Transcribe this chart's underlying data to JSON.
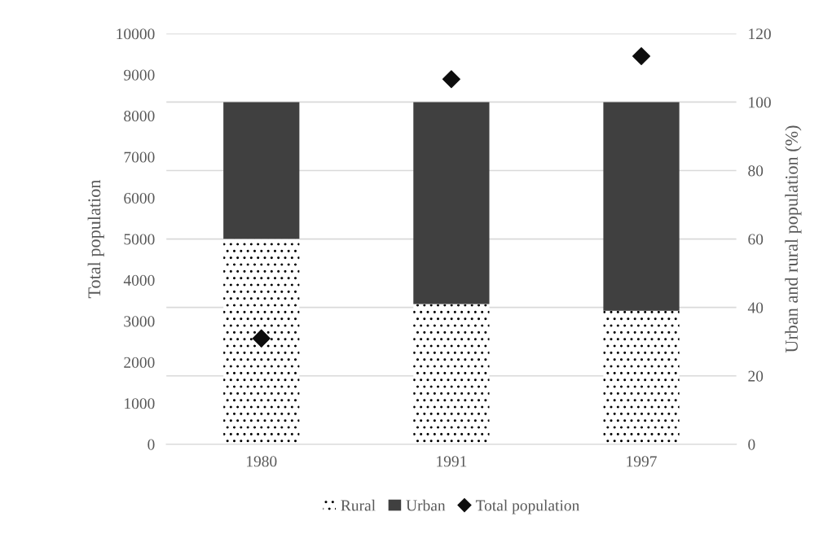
{
  "chart_data": {
    "type": "bar",
    "stacked": true,
    "categories": [
      "1980",
      "1991",
      "1997"
    ],
    "ylabel": "Total population",
    "y2label": "Urban and rural population (%)",
    "ylim": [
      0,
      10000
    ],
    "yticks": [
      0,
      1000,
      2000,
      3000,
      4000,
      5000,
      6000,
      7000,
      8000,
      9000,
      10000
    ],
    "y2lim": [
      0,
      120
    ],
    "y2ticks": [
      0,
      20,
      40,
      60,
      80,
      100,
      120
    ],
    "grid": "y",
    "legend": "bottom",
    "series": [
      {
        "name": "Rural",
        "axis": "y2",
        "color": "#000000",
        "values": [
          60,
          41,
          39
        ]
      },
      {
        "name": "Urban",
        "axis": "y2",
        "color": "#404040",
        "values": [
          40,
          59,
          61
        ]
      },
      {
        "name": "Total population",
        "type": "scatter",
        "axis": "y",
        "color": "#0d0d0d",
        "marker": "diamond",
        "values": [
          2580,
          8890,
          9450
        ]
      }
    ]
  }
}
